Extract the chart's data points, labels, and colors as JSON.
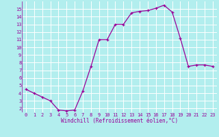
{
  "x": [
    0,
    1,
    2,
    3,
    4,
    5,
    6,
    7,
    8,
    9,
    10,
    11,
    12,
    13,
    14,
    15,
    16,
    17,
    18,
    19,
    20,
    21,
    22,
    23
  ],
  "y": [
    4.5,
    4.0,
    3.5,
    3.0,
    1.8,
    1.7,
    1.8,
    4.3,
    7.5,
    11.0,
    11.0,
    13.0,
    13.0,
    14.5,
    14.7,
    14.8,
    15.1,
    15.5,
    14.6,
    11.2,
    7.5,
    7.7,
    7.7,
    7.5
  ],
  "line_color": "#990099",
  "marker": "+",
  "bg_color": "#b2eeee",
  "grid_color": "#ffffff",
  "xlabel": "Windchill (Refroidissement éolien,°C)",
  "xlabel_color": "#990099",
  "tick_color": "#990099",
  "xlim": [
    -0.5,
    23.5
  ],
  "ylim": [
    1.5,
    16.0
  ],
  "yticks": [
    2,
    3,
    4,
    5,
    6,
    7,
    8,
    9,
    10,
    11,
    12,
    13,
    14,
    15
  ],
  "xticks": [
    0,
    1,
    2,
    3,
    4,
    5,
    6,
    7,
    8,
    9,
    10,
    11,
    12,
    13,
    14,
    15,
    16,
    17,
    18,
    19,
    20,
    21,
    22,
    23
  ],
  "xlabel_fontsize": 5.5,
  "tick_fontsize": 5.0
}
